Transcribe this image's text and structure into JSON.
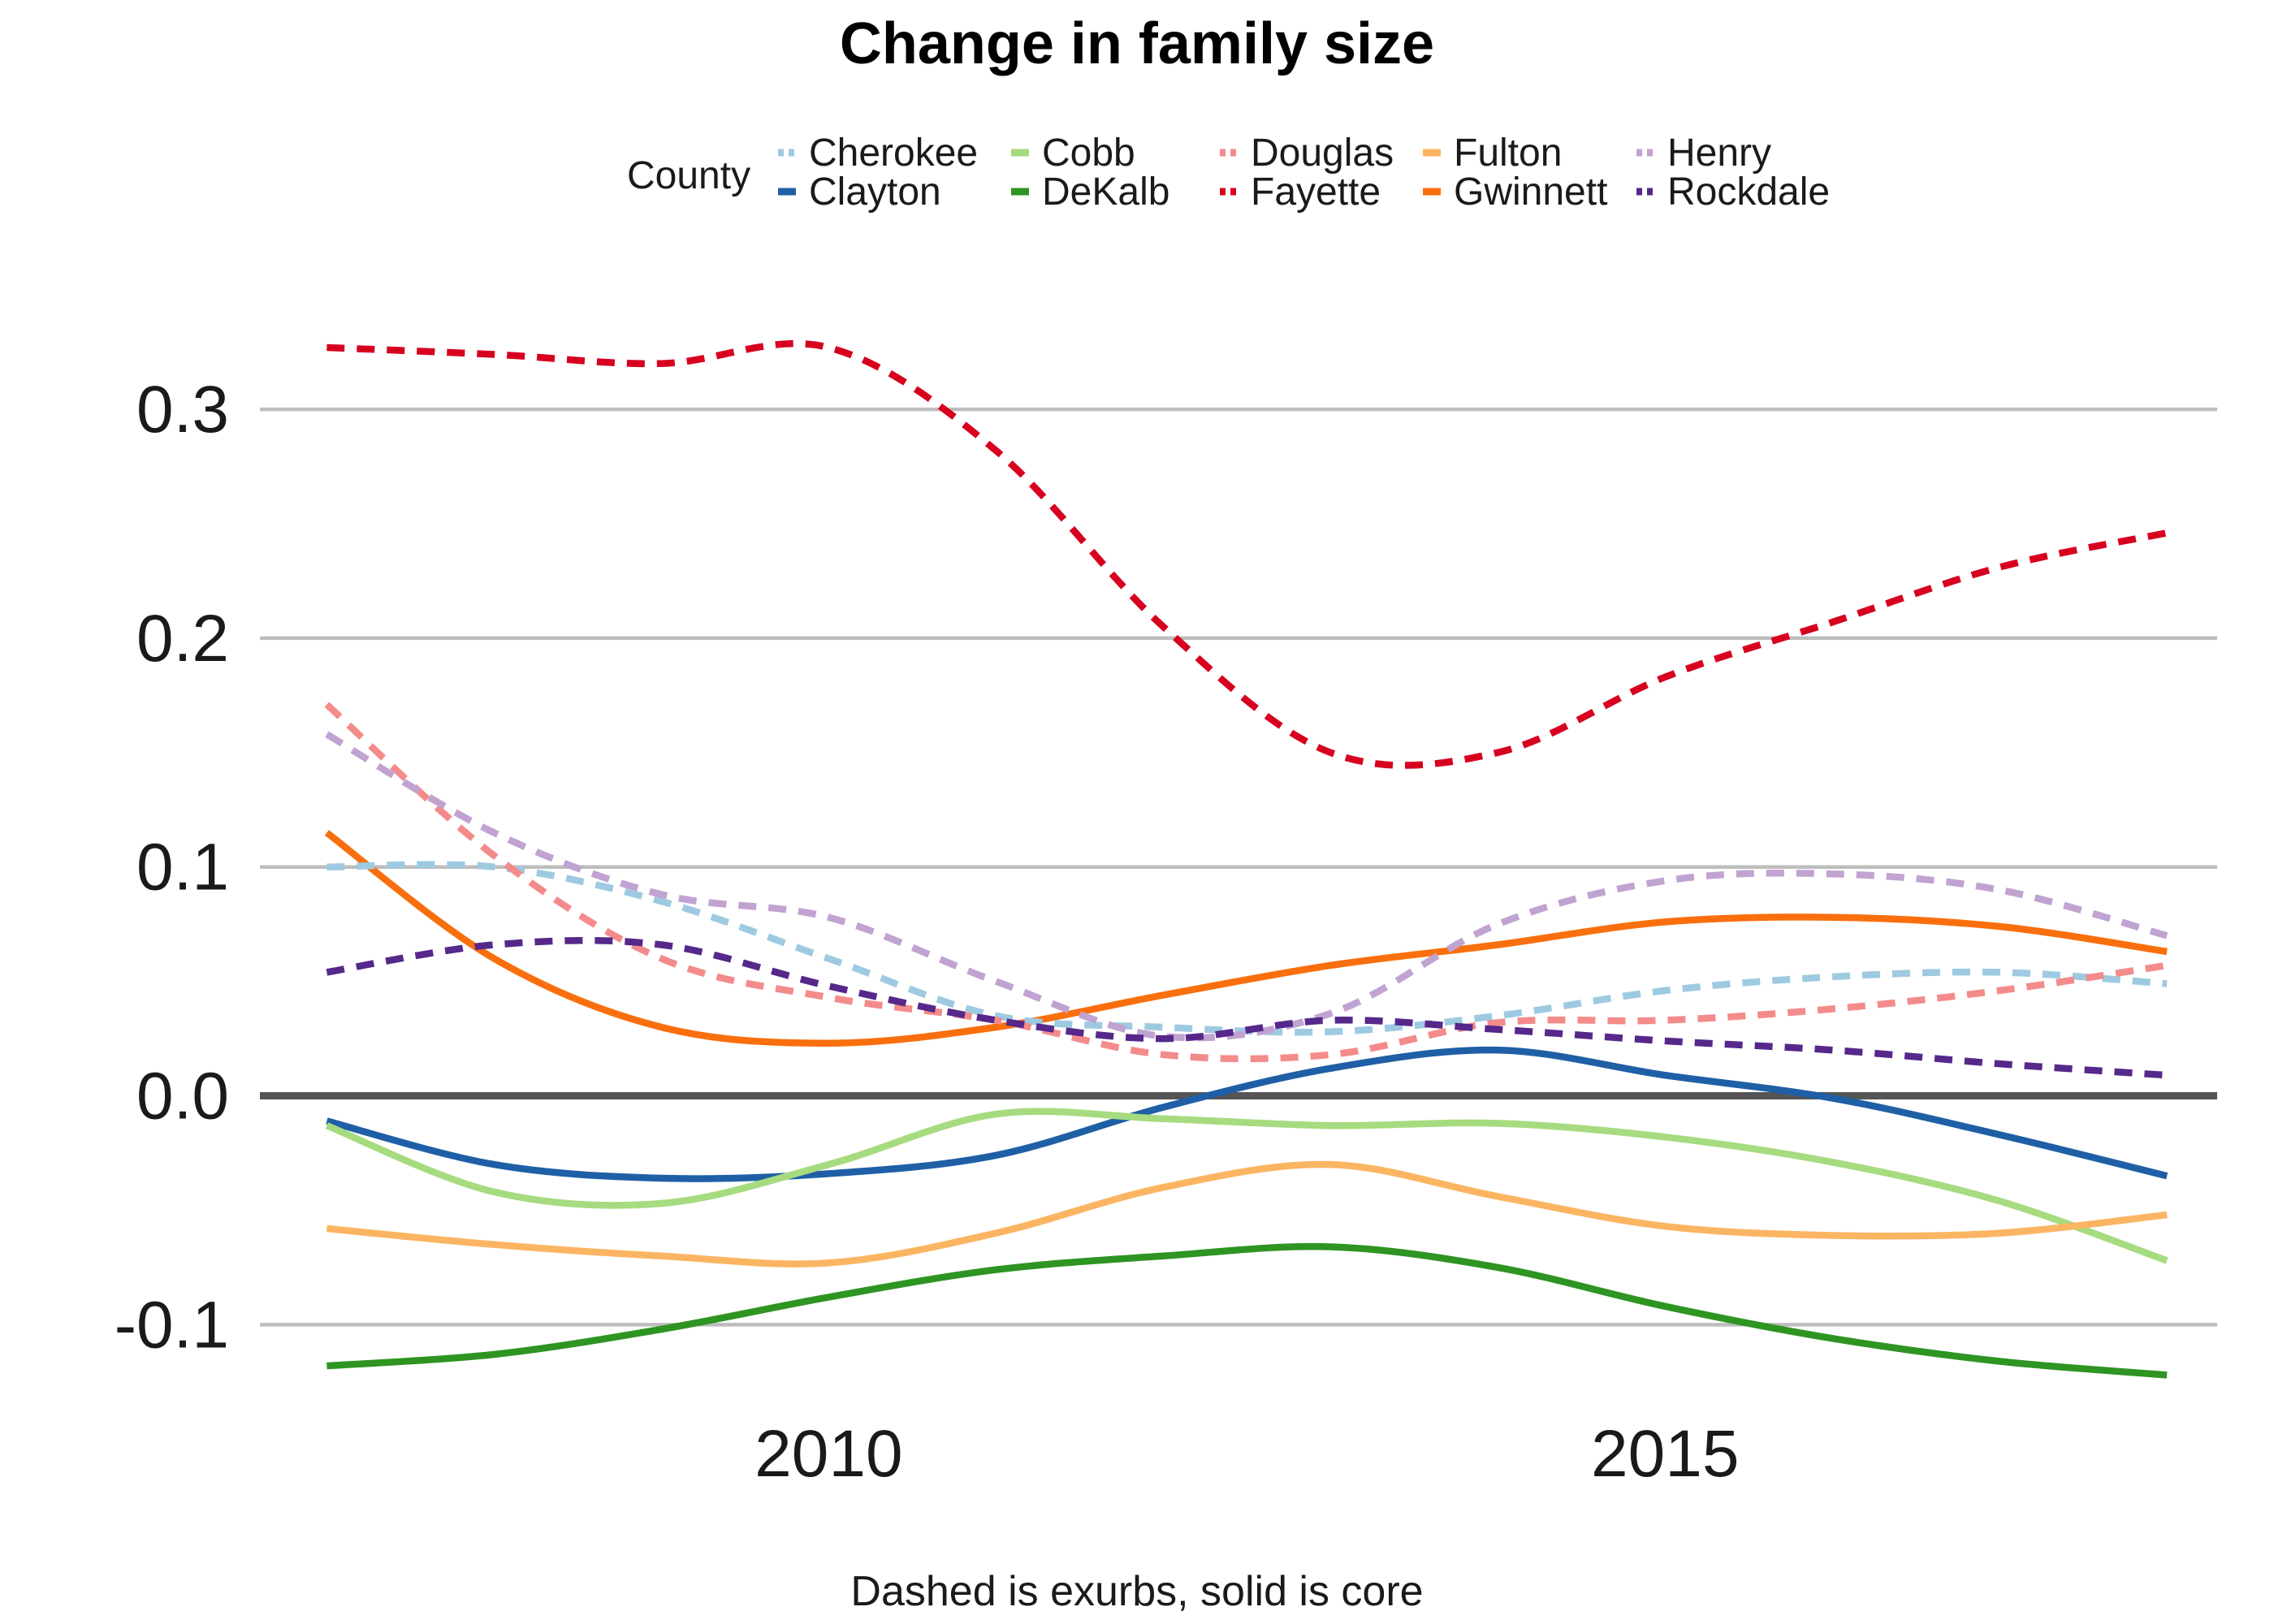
{
  "chart_data": {
    "type": "line",
    "title": "Change in family size",
    "caption": "Dashed is exurbs, solid is core",
    "legend": {
      "title": "County",
      "placement": "top"
    },
    "xlim": [
      2006.6,
      2018.3
    ],
    "ylim": [
      -0.135,
      0.36
    ],
    "x_ticks": [
      2010,
      2015
    ],
    "x_tick_labels": [
      "2010",
      "2015"
    ],
    "y_ticks": [
      -0.1,
      0.0,
      0.1,
      0.2,
      0.3
    ],
    "y_tick_labels": [
      "-0.1",
      "0.0",
      "0.1",
      "0.2",
      "0.3"
    ],
    "grid": true,
    "x": [
      2007,
      2008,
      2009,
      2010,
      2011,
      2012,
      2013,
      2014,
      2015,
      2016,
      2017,
      2018
    ],
    "series": [
      {
        "name": "Cherokee",
        "color": "#9ecae1",
        "dashed": true,
        "values": [
          0.1,
          0.1,
          0.085,
          0.06,
          0.035,
          0.03,
          0.028,
          0.035,
          0.046,
          0.052,
          0.054,
          0.049
        ]
      },
      {
        "name": "Clayton",
        "color": "#1f5fa6",
        "dashed": false,
        "values": [
          -0.011,
          -0.03,
          -0.036,
          -0.034,
          -0.026,
          -0.005,
          0.012,
          0.02,
          0.009,
          -0.001,
          -0.017,
          -0.035
        ]
      },
      {
        "name": "Cobb",
        "color": "#a6db7f",
        "dashed": false,
        "values": [
          -0.013,
          -0.042,
          -0.047,
          -0.03,
          -0.008,
          -0.01,
          -0.013,
          -0.012,
          -0.018,
          -0.029,
          -0.046,
          -0.072
        ]
      },
      {
        "name": "DeKalb",
        "color": "#2e9422",
        "dashed": false,
        "values": [
          -0.118,
          -0.113,
          -0.102,
          -0.088,
          -0.076,
          -0.07,
          -0.066,
          -0.075,
          -0.092,
          -0.106,
          -0.116,
          -0.122
        ]
      },
      {
        "name": "Douglas",
        "color": "#f48b8b",
        "dashed": true,
        "values": [
          0.171,
          0.105,
          0.06,
          0.043,
          0.033,
          0.018,
          0.018,
          0.032,
          0.033,
          0.038,
          0.046,
          0.057
        ]
      },
      {
        "name": "Fayette",
        "color": "#d7001f",
        "dashed": true,
        "values": [
          0.327,
          0.324,
          0.32,
          0.327,
          0.282,
          0.205,
          0.15,
          0.15,
          0.183,
          0.207,
          0.231,
          0.246
        ]
      },
      {
        "name": "Fulton",
        "color": "#fbb562",
        "dashed": false,
        "values": [
          -0.058,
          -0.065,
          -0.07,
          -0.073,
          -0.06,
          -0.04,
          -0.03,
          -0.044,
          -0.057,
          -0.061,
          -0.06,
          -0.052
        ]
      },
      {
        "name": "Gwinnett",
        "color": "#f96f0e",
        "dashed": false,
        "values": [
          0.115,
          0.06,
          0.03,
          0.023,
          0.03,
          0.044,
          0.057,
          0.066,
          0.076,
          0.078,
          0.074,
          0.063
        ]
      },
      {
        "name": "Henry",
        "color": "#c1a3d2",
        "dashed": true,
        "values": [
          0.158,
          0.115,
          0.088,
          0.078,
          0.05,
          0.026,
          0.036,
          0.075,
          0.094,
          0.097,
          0.09,
          0.07
        ]
      },
      {
        "name": "Rockdale",
        "color": "#56288b",
        "dashed": true,
        "values": [
          0.054,
          0.066,
          0.066,
          0.048,
          0.033,
          0.025,
          0.033,
          0.029,
          0.024,
          0.02,
          0.014,
          0.009
        ]
      }
    ]
  }
}
